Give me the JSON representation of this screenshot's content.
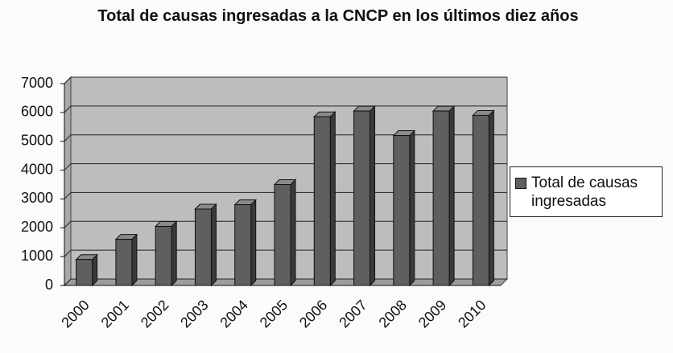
{
  "chart_data": {
    "type": "bar",
    "title": "Total de causas ingresadas a la CNCP  en los últimos diez años",
    "categories": [
      "2000",
      "2001",
      "2002",
      "2003",
      "2004",
      "2005",
      "2006",
      "2007",
      "2008",
      "2009",
      "2010"
    ],
    "series": [
      {
        "name": "Total de causas ingresadas",
        "color": "#5f5f5f",
        "values": [
          900,
          1600,
          2050,
          2650,
          2800,
          3500,
          5850,
          6050,
          5200,
          6050,
          5900
        ]
      }
    ],
    "ylim": [
      0,
      7000
    ],
    "yticks": [
      0,
      1000,
      2000,
      3000,
      4000,
      5000,
      6000,
      7000
    ],
    "grid": true,
    "legend": "right"
  }
}
